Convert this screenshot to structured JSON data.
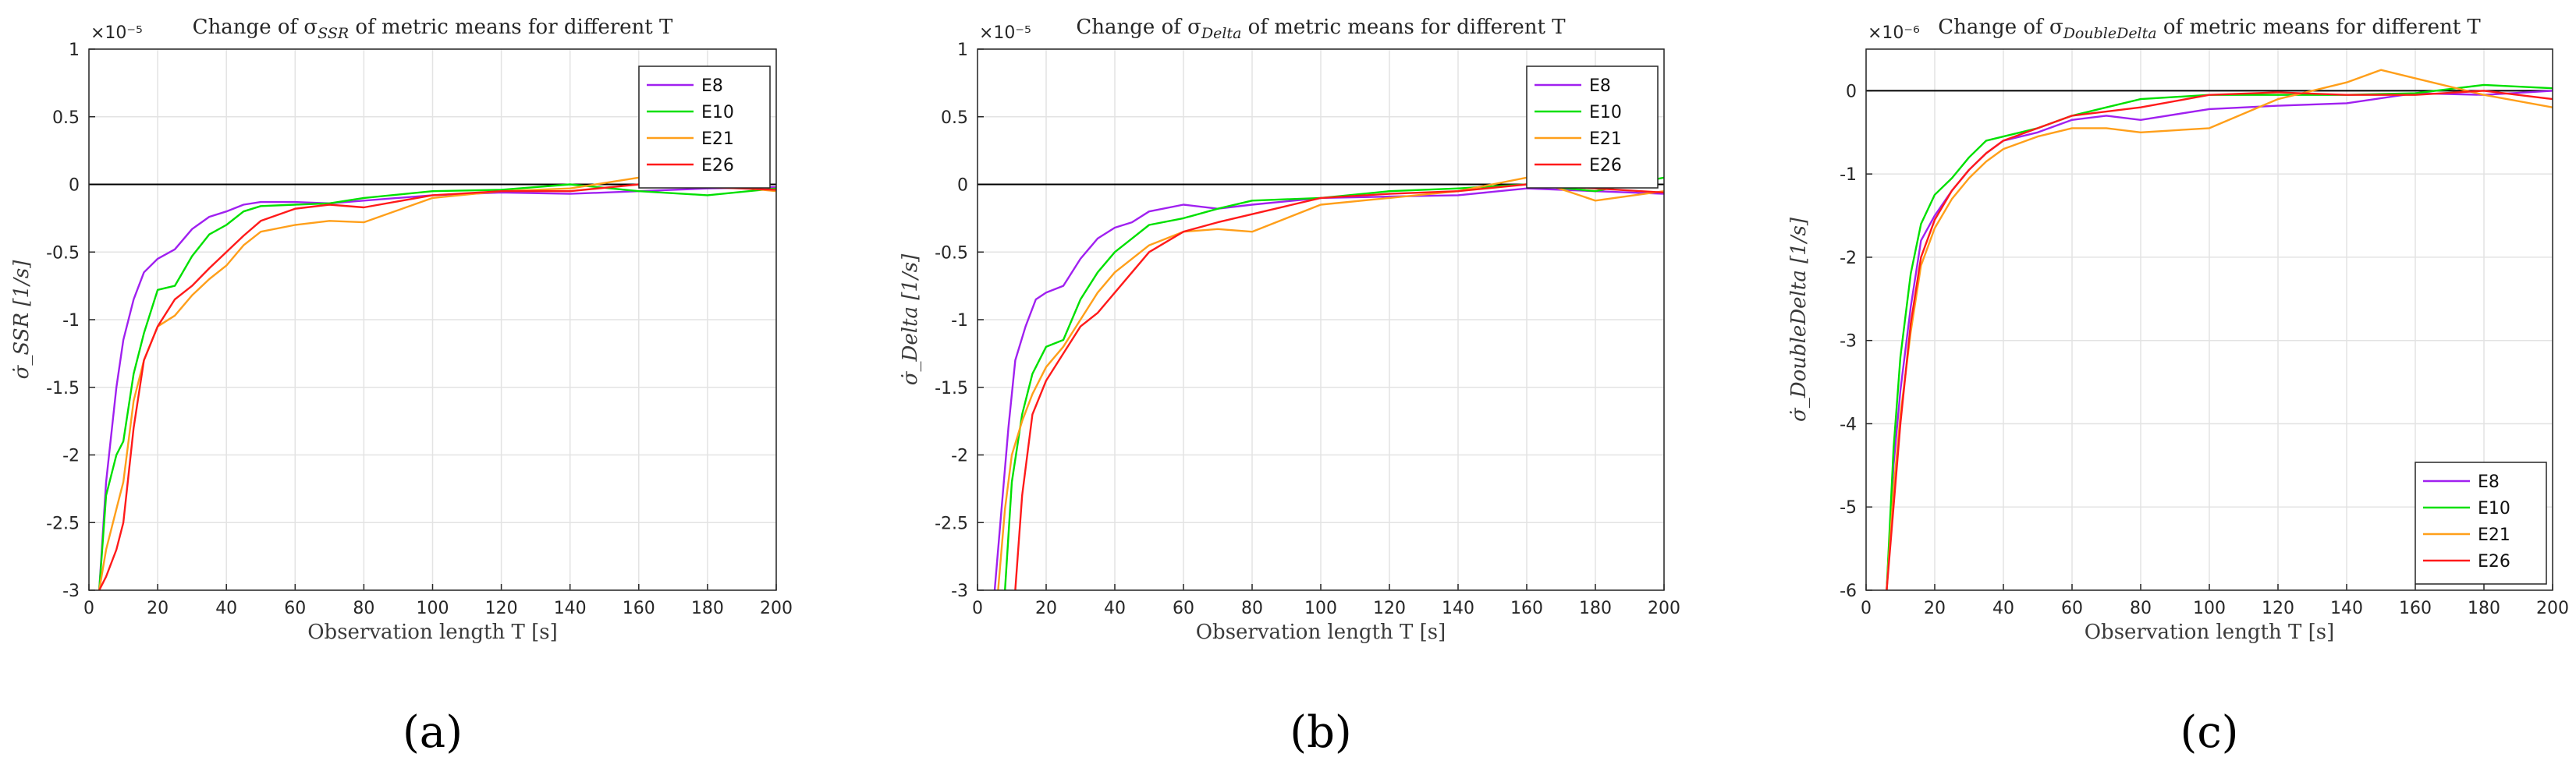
{
  "chart_data": [
    {
      "type": "line",
      "panel_label": "(a)",
      "title": "Change of σ_SSR of metric means for different T",
      "xlabel": "Observation length T [s]",
      "ylabel": "σ̇_SSR [1/s]",
      "y_exponent": "×10⁻⁵",
      "xlim": [
        0,
        200
      ],
      "ylim": [
        -3,
        1
      ],
      "xticks": [
        "0",
        "20",
        "40",
        "60",
        "80",
        "100",
        "120",
        "140",
        "160",
        "180",
        "200"
      ],
      "yticks": [
        "1",
        "0.5",
        "0",
        "-0.5",
        "-1",
        "-1.5",
        "-2",
        "-2.5",
        "-3"
      ],
      "grid": true,
      "legend_position": "top-right",
      "reference_line": 0,
      "series": [
        {
          "name": "E8",
          "color": "#a020f0",
          "x": [
            3,
            5,
            8,
            10,
            13,
            16,
            20,
            25,
            30,
            35,
            40,
            45,
            50,
            60,
            70,
            80,
            100,
            120,
            140,
            160,
            180,
            200
          ],
          "y": [
            -3,
            -2.2,
            -1.5,
            -1.15,
            -0.85,
            -0.65,
            -0.55,
            -0.48,
            -0.33,
            -0.24,
            -0.2,
            -0.15,
            -0.13,
            -0.13,
            -0.14,
            -0.12,
            -0.08,
            -0.06,
            -0.07,
            -0.05,
            -0.03,
            -0.02
          ]
        },
        {
          "name": "E10",
          "color": "#00e000",
          "x": [
            3,
            5,
            8,
            10,
            13,
            16,
            20,
            25,
            30,
            35,
            40,
            45,
            50,
            60,
            70,
            80,
            100,
            120,
            140,
            160,
            180,
            200
          ],
          "y": [
            -3,
            -2.3,
            -2.0,
            -1.9,
            -1.4,
            -1.1,
            -0.78,
            -0.75,
            -0.53,
            -0.37,
            -0.3,
            -0.2,
            -0.16,
            -0.15,
            -0.14,
            -0.1,
            -0.05,
            -0.04,
            0.0,
            -0.05,
            -0.08,
            -0.03
          ]
        },
        {
          "name": "E21",
          "color": "#ff9f1a",
          "x": [
            3,
            5,
            8,
            10,
            13,
            16,
            20,
            25,
            30,
            35,
            40,
            45,
            50,
            60,
            70,
            80,
            100,
            120,
            140,
            160,
            180,
            200
          ],
          "y": [
            -3,
            -2.7,
            -2.4,
            -2.2,
            -1.6,
            -1.3,
            -1.05,
            -0.97,
            -0.82,
            -0.7,
            -0.6,
            -0.45,
            -0.35,
            -0.3,
            -0.27,
            -0.28,
            -0.1,
            -0.05,
            -0.03,
            0.05,
            0.0,
            -0.05
          ]
        },
        {
          "name": "E26",
          "color": "#ff1a1a",
          "x": [
            3,
            5,
            8,
            10,
            13,
            16,
            20,
            25,
            30,
            35,
            40,
            45,
            50,
            60,
            70,
            80,
            100,
            120,
            140,
            160,
            180,
            200
          ],
          "y": [
            -3,
            -2.9,
            -2.7,
            -2.5,
            -1.8,
            -1.3,
            -1.05,
            -0.85,
            -0.75,
            -0.62,
            -0.5,
            -0.38,
            -0.27,
            -0.18,
            -0.15,
            -0.17,
            -0.08,
            -0.05,
            -0.05,
            0.0,
            -0.02,
            -0.04
          ]
        }
      ]
    },
    {
      "type": "line",
      "panel_label": "(b)",
      "title": "Change of σ_Delta of metric means for different T",
      "xlabel": "Observation length T [s]",
      "ylabel": "σ̇_Delta [1/s]",
      "y_exponent": "×10⁻⁵",
      "xlim": [
        0,
        200
      ],
      "ylim": [
        -3,
        1
      ],
      "xticks": [
        "0",
        "20",
        "40",
        "60",
        "80",
        "100",
        "120",
        "140",
        "160",
        "180",
        "200"
      ],
      "yticks": [
        "1",
        "0.5",
        "0",
        "-0.5",
        "-1",
        "-1.5",
        "-2",
        "-2.5",
        "-3"
      ],
      "grid": true,
      "legend_position": "top-right",
      "reference_line": 0,
      "series": [
        {
          "name": "E8",
          "color": "#a020f0",
          "x": [
            5,
            7,
            9,
            11,
            14,
            17,
            20,
            25,
            30,
            35,
            40,
            45,
            50,
            60,
            70,
            80,
            100,
            120,
            140,
            160,
            180,
            200
          ],
          "y": [
            -3,
            -2.4,
            -1.8,
            -1.3,
            -1.05,
            -0.85,
            -0.8,
            -0.75,
            -0.55,
            -0.4,
            -0.32,
            -0.28,
            -0.2,
            -0.15,
            -0.18,
            -0.15,
            -0.1,
            -0.09,
            -0.08,
            -0.03,
            -0.05,
            -0.07
          ]
        },
        {
          "name": "E10",
          "color": "#00e000",
          "x": [
            8,
            10,
            13,
            16,
            20,
            25,
            30,
            35,
            40,
            45,
            50,
            60,
            70,
            80,
            100,
            120,
            140,
            160,
            180,
            200
          ],
          "y": [
            -3,
            -2.2,
            -1.7,
            -1.4,
            -1.2,
            -1.15,
            -0.85,
            -0.65,
            -0.5,
            -0.4,
            -0.3,
            -0.25,
            -0.18,
            -0.12,
            -0.1,
            -0.05,
            -0.03,
            0.0,
            -0.05,
            0.05
          ]
        },
        {
          "name": "E21",
          "color": "#ff9f1a",
          "x": [
            6,
            8,
            10,
            13,
            16,
            20,
            25,
            30,
            35,
            40,
            45,
            50,
            60,
            70,
            80,
            100,
            120,
            140,
            160,
            180,
            200
          ],
          "y": [
            -3,
            -2.4,
            -2.0,
            -1.75,
            -1.55,
            -1.35,
            -1.2,
            -1.0,
            -0.8,
            -0.65,
            -0.55,
            -0.45,
            -0.35,
            -0.33,
            -0.35,
            -0.15,
            -0.1,
            -0.05,
            0.05,
            -0.12,
            -0.05
          ]
        },
        {
          "name": "E26",
          "color": "#ff1a1a",
          "x": [
            11,
            13,
            16,
            20,
            25,
            30,
            35,
            40,
            45,
            50,
            60,
            70,
            80,
            100,
            120,
            140,
            160,
            180,
            200
          ],
          "y": [
            -3,
            -2.3,
            -1.7,
            -1.45,
            -1.25,
            -1.05,
            -0.95,
            -0.8,
            -0.65,
            -0.5,
            -0.35,
            -0.28,
            -0.22,
            -0.1,
            -0.07,
            -0.05,
            0.0,
            -0.03,
            -0.06
          ]
        }
      ]
    },
    {
      "type": "line",
      "panel_label": "(c)",
      "title": "Change of σ_DoubleDelta of metric means for different T",
      "xlabel": "Observation length T [s]",
      "ylabel": "σ̇_DoubleDelta [1/s]",
      "y_exponent": "×10⁻⁶",
      "xlim": [
        0,
        200
      ],
      "ylim": [
        -6,
        0.5
      ],
      "xticks": [
        "0",
        "20",
        "40",
        "60",
        "80",
        "100",
        "120",
        "140",
        "160",
        "180",
        "200"
      ],
      "yticks": [
        "0",
        "-1",
        "-2",
        "-3",
        "-4",
        "-5",
        "-6"
      ],
      "grid": true,
      "legend_position": "bottom-right",
      "reference_line": 0,
      "series": [
        {
          "name": "E8",
          "color": "#a020f0",
          "x": [
            6,
            8,
            10,
            13,
            16,
            20,
            25,
            30,
            35,
            40,
            50,
            60,
            70,
            80,
            100,
            120,
            140,
            160,
            180,
            200
          ],
          "y": [
            -6,
            -4.5,
            -3.6,
            -2.6,
            -1.8,
            -1.5,
            -1.2,
            -0.95,
            -0.75,
            -0.6,
            -0.5,
            -0.35,
            -0.3,
            -0.35,
            -0.22,
            -0.18,
            -0.15,
            -0.03,
            -0.05,
            0.0
          ]
        },
        {
          "name": "E10",
          "color": "#00e000",
          "x": [
            6,
            8,
            10,
            13,
            16,
            20,
            25,
            30,
            35,
            40,
            50,
            60,
            70,
            80,
            100,
            120,
            140,
            160,
            180,
            200
          ],
          "y": [
            -6,
            -4.3,
            -3.2,
            -2.2,
            -1.6,
            -1.25,
            -1.05,
            -0.8,
            -0.6,
            -0.55,
            -0.45,
            -0.3,
            -0.2,
            -0.1,
            -0.05,
            -0.05,
            -0.05,
            -0.03,
            0.07,
            0.03
          ]
        },
        {
          "name": "E21",
          "color": "#ff9f1a",
          "x": [
            6,
            8,
            10,
            13,
            16,
            20,
            25,
            30,
            35,
            40,
            50,
            60,
            70,
            80,
            100,
            120,
            140,
            150,
            160,
            180,
            200
          ],
          "y": [
            -6,
            -4.8,
            -3.9,
            -2.9,
            -2.1,
            -1.65,
            -1.3,
            -1.05,
            -0.85,
            -0.7,
            -0.55,
            -0.45,
            -0.45,
            -0.5,
            -0.45,
            -0.1,
            0.1,
            0.25,
            0.15,
            -0.05,
            -0.2
          ]
        },
        {
          "name": "E26",
          "color": "#ff1a1a",
          "x": [
            6,
            8,
            10,
            13,
            16,
            20,
            25,
            30,
            35,
            40,
            50,
            60,
            70,
            80,
            100,
            120,
            140,
            160,
            180,
            200
          ],
          "y": [
            -6,
            -5.0,
            -4.0,
            -2.8,
            -2.0,
            -1.55,
            -1.2,
            -0.95,
            -0.75,
            -0.6,
            -0.45,
            -0.3,
            -0.25,
            -0.2,
            -0.05,
            -0.02,
            -0.05,
            -0.05,
            0.0,
            -0.1
          ]
        }
      ]
    }
  ]
}
